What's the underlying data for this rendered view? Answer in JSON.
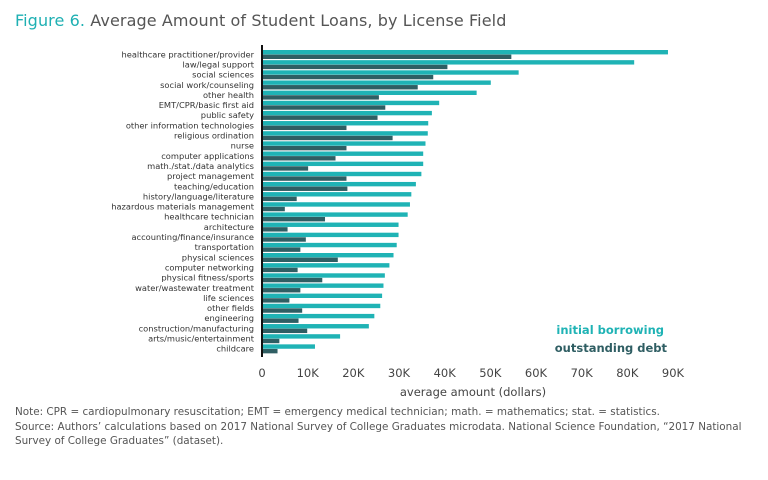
{
  "figure": {
    "label": "Figure 6.",
    "title": "Average Amount of Student Loans, by License Field"
  },
  "notes": [
    "Note: CPR = cardiopulmonary resuscitation; EMT = emergency medical technician; math. = mathematics; stat. = statistics.",
    "Source: Authors’ calculations based on 2017 National Survey of College Graduates microdata. National Science Foundation, “2017 National Survey of College Graduates” (dataset)."
  ],
  "colors": {
    "initial_borrowing": "#1fb3b5",
    "outstanding_debt": "#2f5e63"
  },
  "chart_data": {
    "type": "bar",
    "orientation": "horizontal",
    "xlabel": "average amount (dollars)",
    "ylabel": "",
    "xlim": [
      0,
      90000
    ],
    "xticks": [
      0,
      10000,
      20000,
      30000,
      40000,
      50000,
      60000,
      70000,
      80000,
      90000
    ],
    "xtick_labels": [
      "0",
      "10K",
      "20K",
      "30K",
      "40K",
      "50K",
      "60K",
      "70K",
      "80K",
      "90K"
    ],
    "grid": false,
    "legend_position": "bottom-right",
    "categories": [
      "healthcare practitioner/provider",
      "law/legal support",
      "social sciences",
      "social work/counseling",
      "other health",
      "EMT/CPR/basic first aid",
      "public safety",
      "other information technologies",
      "religious ordination",
      "nurse",
      "computer applications",
      "math./stat./data analytics",
      "project management",
      "teaching/education",
      "history/language/literature",
      "hazardous materials management",
      "healthcare technician",
      "architecture",
      "accounting/finance/insurance",
      "transportation",
      "physical sciences",
      "computer networking",
      "physical fitness/sports",
      "water/wastewater treatment",
      "life sciences",
      "other fields",
      "engineering",
      "construction/manufacturing",
      "arts/music/entertainment",
      "childcare"
    ],
    "series": [
      {
        "name": "initial borrowing",
        "values": [
          88900,
          81500,
          56200,
          50100,
          47000,
          38800,
          37200,
          36400,
          36300,
          35800,
          35300,
          35300,
          34900,
          33700,
          32700,
          32400,
          31900,
          29900,
          29900,
          29500,
          28800,
          27900,
          26900,
          26600,
          26300,
          25900,
          24600,
          23400,
          17100,
          11600
        ]
      },
      {
        "name": "outstanding debt",
        "values": [
          54600,
          40600,
          37500,
          34100,
          25600,
          27000,
          25300,
          18500,
          28600,
          18500,
          16100,
          10100,
          18500,
          18700,
          7600,
          5000,
          13800,
          5600,
          9600,
          8400,
          16600,
          7800,
          13200,
          8400,
          6000,
          8800,
          8000,
          9900,
          3800,
          3400
        ]
      }
    ]
  }
}
